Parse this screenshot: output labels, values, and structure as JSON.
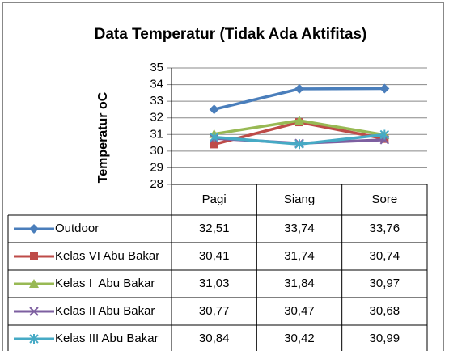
{
  "chart_data": {
    "type": "line",
    "title": "Data Temperatur (Tidak Ada Aktifitas)",
    "y_label": "Temperatur oC",
    "categories": [
      "Pagi",
      "Siang",
      "Sore"
    ],
    "ylim": [
      28,
      35
    ],
    "yticks": [
      28,
      29,
      30,
      31,
      32,
      33,
      34,
      35
    ],
    "grid": true,
    "series": [
      {
        "name": "Outdoor",
        "color": "#4a7ebb",
        "marker": "diamond",
        "values": [
          32.51,
          33.74,
          33.76
        ],
        "value_labels": [
          "32,51",
          "33,74",
          "33,76"
        ]
      },
      {
        "name": "Kelas VI Abu Bakar",
        "color": "#be4b48",
        "marker": "square",
        "values": [
          30.41,
          31.74,
          30.74
        ],
        "value_labels": [
          "30,41",
          "31,74",
          "30,74"
        ]
      },
      {
        "name": "Kelas I  Abu Bakar",
        "color": "#98b954",
        "marker": "triangle",
        "values": [
          31.03,
          31.84,
          30.97
        ],
        "value_labels": [
          "31,03",
          "31,84",
          "30,97"
        ]
      },
      {
        "name": "Kelas II Abu Bakar",
        "color": "#7d5fa0",
        "marker": "x",
        "values": [
          30.77,
          30.47,
          30.68
        ],
        "value_labels": [
          "30,77",
          "30,47",
          "30,68"
        ]
      },
      {
        "name": "Kelas III Abu Bakar",
        "color": "#46aac5",
        "marker": "star",
        "values": [
          30.84,
          30.42,
          30.99
        ],
        "value_labels": [
          "30,84",
          "30,42",
          "30,99"
        ]
      }
    ]
  }
}
